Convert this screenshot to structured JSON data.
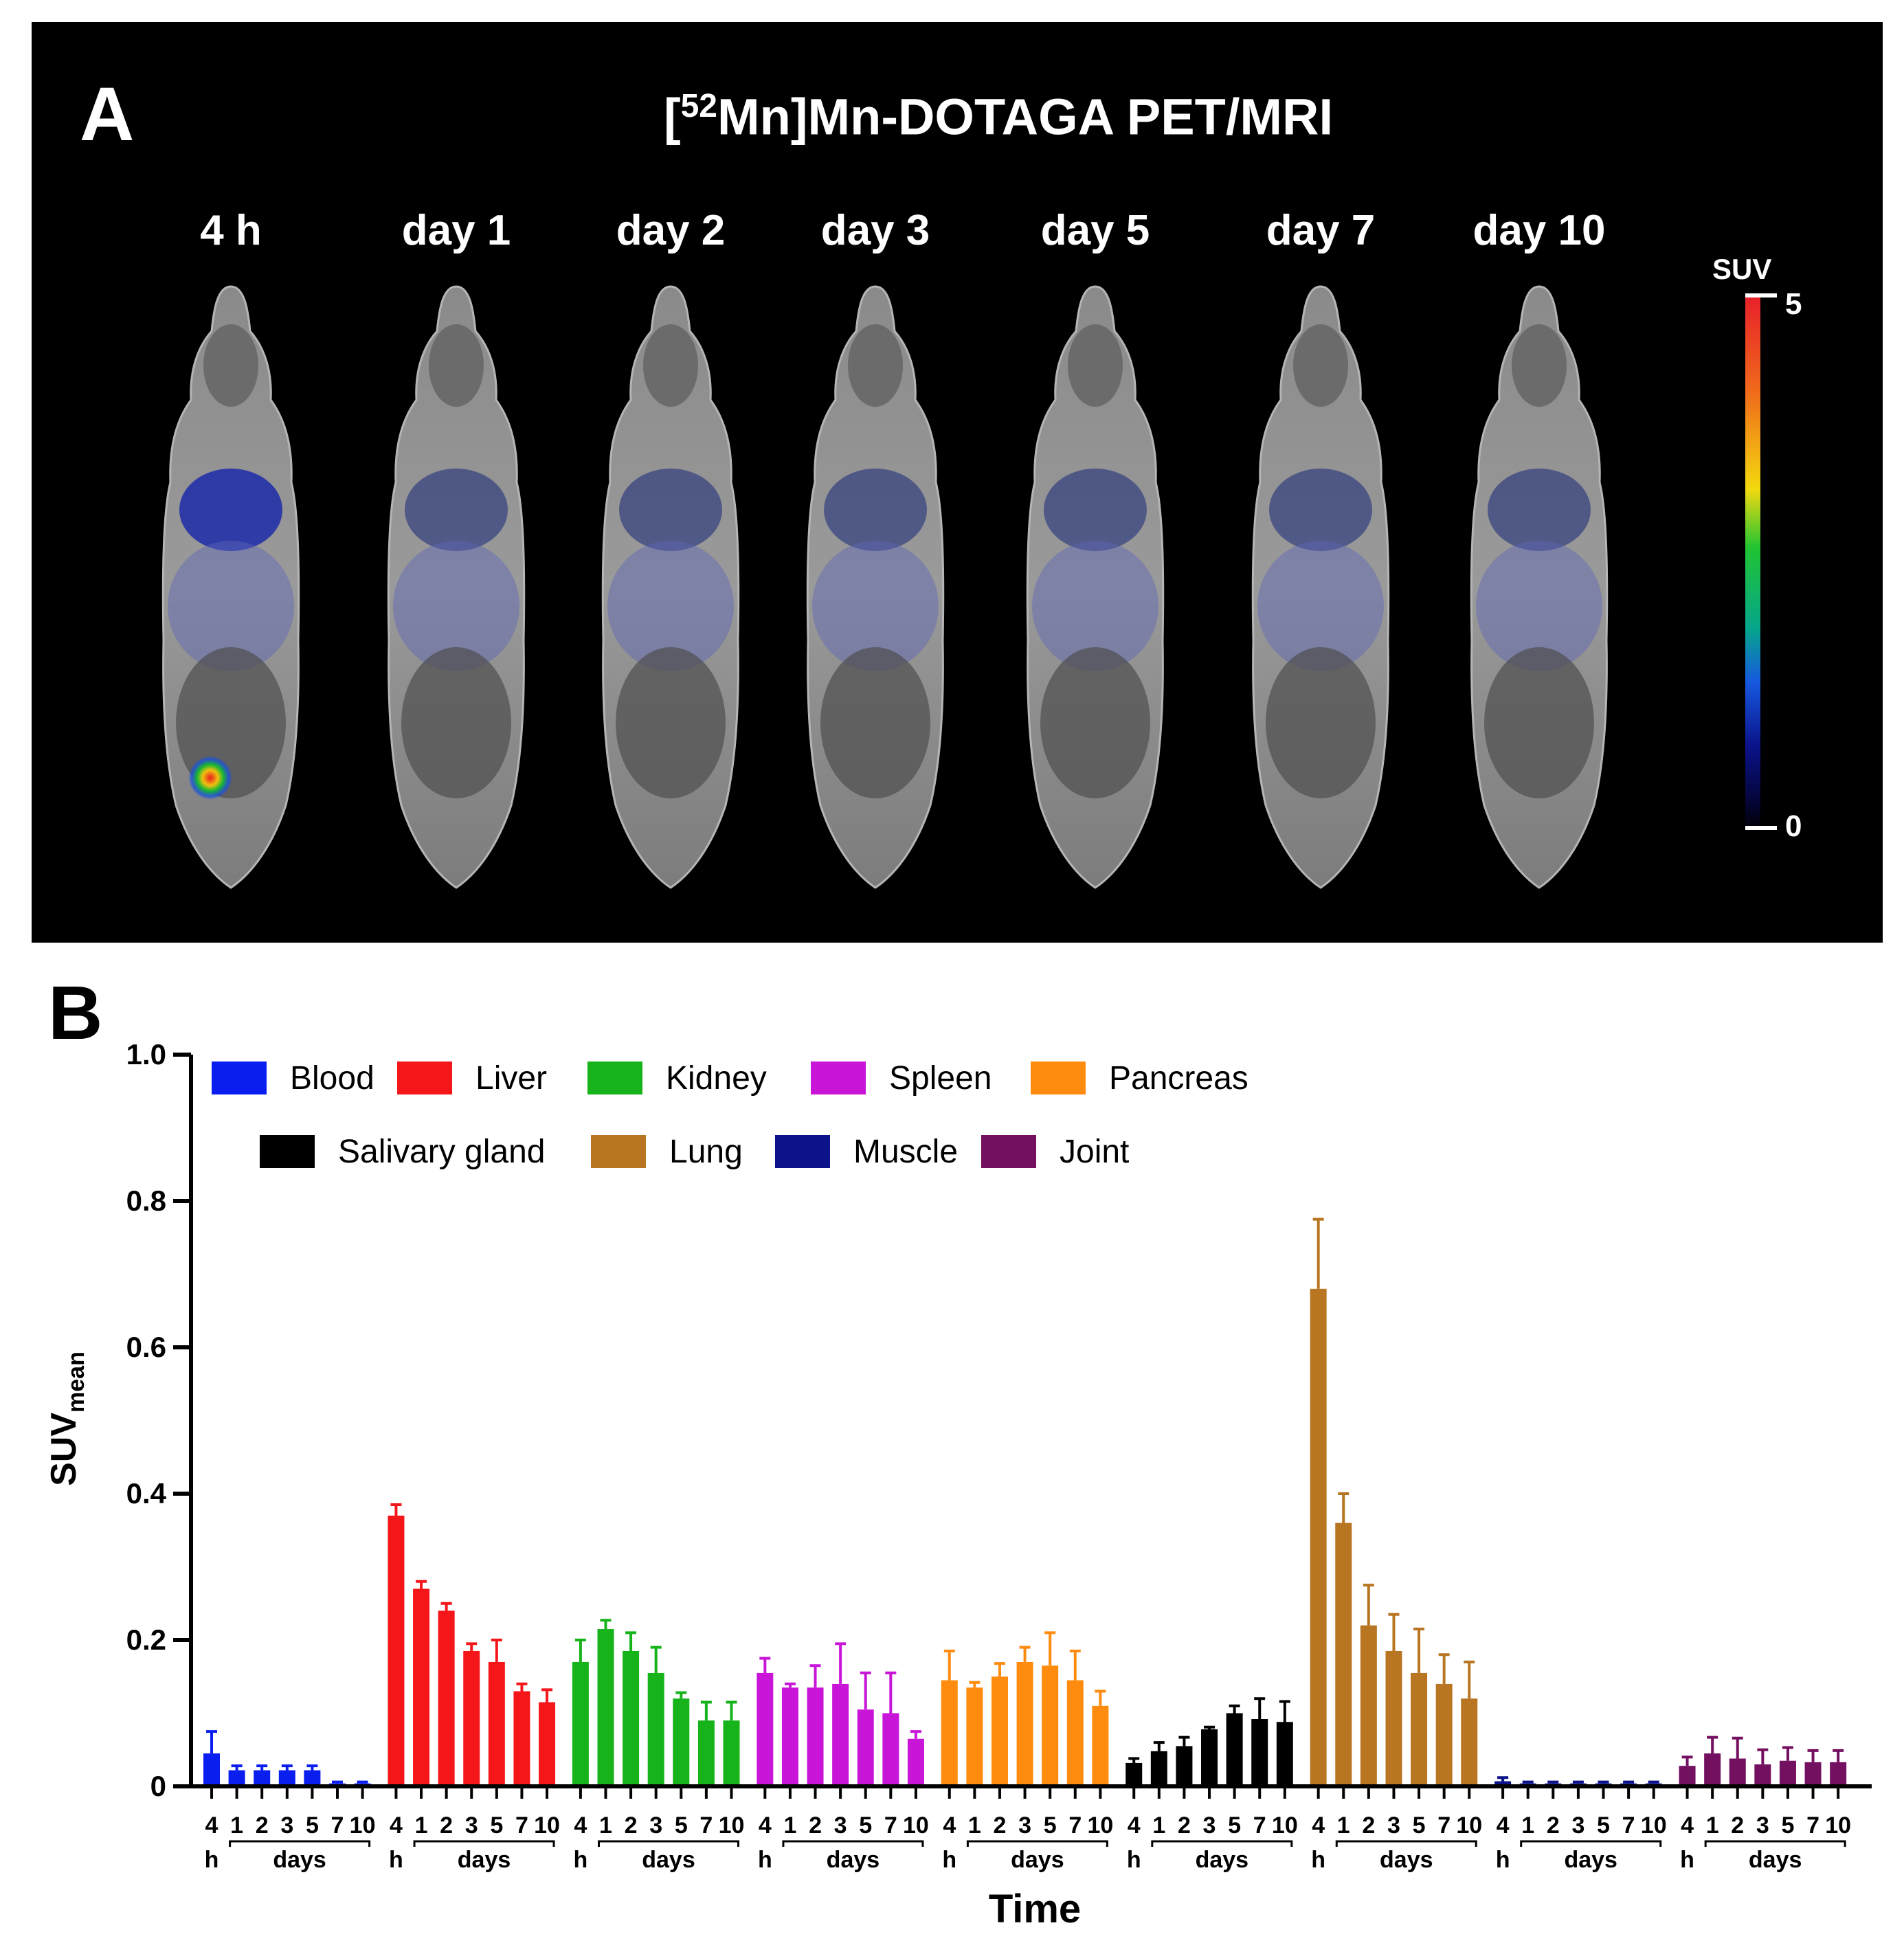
{
  "panel_a": {
    "letter": "A",
    "title_prefix": "[",
    "title_superscript": "52",
    "title_main": "Mn]Mn-DOTAGA PET/MRI",
    "timepoints": [
      "4 h",
      "day 1",
      "day 2",
      "day 3",
      "day 5",
      "day 7",
      "day 10"
    ],
    "colorbar": {
      "label": "SUV",
      "max_label": "5",
      "min_label": "0"
    }
  },
  "panel_b": {
    "letter": "B"
  },
  "chart_data": {
    "type": "bar",
    "title": "",
    "xlabel": "Time",
    "ylabel": "SUV",
    "ylabel_subscript": "mean",
    "ylim": [
      0,
      1.0
    ],
    "yticks": [
      "0",
      "0.2",
      "0.4",
      "0.6",
      "0.8",
      "1.0"
    ],
    "ytick_values": [
      0,
      0.2,
      0.4,
      0.6,
      0.8,
      1.0
    ],
    "categories": [
      "4 h",
      "1",
      "2",
      "3",
      "5",
      "7",
      "10"
    ],
    "group_tick_labels": [
      "4",
      "1",
      "2",
      "3",
      "5",
      "7",
      "10"
    ],
    "group_sublabel_h": "h",
    "group_sublabel_days": "days",
    "series": [
      {
        "name": "Blood",
        "color": "#0a1ef0",
        "values": [
          0.045,
          0.022,
          0.022,
          0.022,
          0.022,
          0.004,
          0.004
        ],
        "errors": [
          0.03,
          0.006,
          0.006,
          0.006,
          0.006,
          0.002,
          0.002
        ]
      },
      {
        "name": "Liver",
        "color": "#f5161a",
        "values": [
          0.37,
          0.27,
          0.24,
          0.185,
          0.17,
          0.13,
          0.115
        ],
        "errors": [
          0.015,
          0.01,
          0.01,
          0.01,
          0.03,
          0.01,
          0.017
        ]
      },
      {
        "name": "Kidney",
        "color": "#16b31a",
        "values": [
          0.17,
          0.215,
          0.185,
          0.155,
          0.12,
          0.09,
          0.09
        ],
        "errors": [
          0.03,
          0.012,
          0.025,
          0.035,
          0.008,
          0.025,
          0.025
        ]
      },
      {
        "name": "Spleen",
        "color": "#c815d8",
        "values": [
          0.155,
          0.135,
          0.135,
          0.14,
          0.105,
          0.1,
          0.065
        ],
        "errors": [
          0.02,
          0.005,
          0.03,
          0.055,
          0.05,
          0.055,
          0.01
        ]
      },
      {
        "name": "Pancreas",
        "color": "#ff8c0f",
        "values": [
          0.145,
          0.135,
          0.15,
          0.17,
          0.165,
          0.145,
          0.11
        ],
        "errors": [
          0.04,
          0.007,
          0.018,
          0.02,
          0.045,
          0.04,
          0.02
        ]
      },
      {
        "name": "Salivary gland",
        "color": "#000000",
        "values": [
          0.032,
          0.048,
          0.055,
          0.078,
          0.1,
          0.092,
          0.088
        ],
        "errors": [
          0.006,
          0.012,
          0.012,
          0.003,
          0.01,
          0.028,
          0.028
        ]
      },
      {
        "name": "Lung",
        "color": "#b87522",
        "values": [
          0.68,
          0.36,
          0.22,
          0.185,
          0.155,
          0.14,
          0.12
        ],
        "errors": [
          0.095,
          0.04,
          0.055,
          0.05,
          0.06,
          0.04,
          0.05
        ]
      },
      {
        "name": "Muscle",
        "color": "#0c1288",
        "values": [
          0.007,
          0.004,
          0.004,
          0.004,
          0.004,
          0.004,
          0.004
        ],
        "errors": [
          0.005,
          0.002,
          0.002,
          0.002,
          0.002,
          0.002,
          0.002
        ]
      },
      {
        "name": "Joint",
        "color": "#741060",
        "values": [
          0.028,
          0.045,
          0.038,
          0.03,
          0.035,
          0.033,
          0.033
        ],
        "errors": [
          0.012,
          0.022,
          0.028,
          0.02,
          0.018,
          0.016,
          0.016
        ]
      }
    ],
    "legend_placement": "top-left"
  }
}
